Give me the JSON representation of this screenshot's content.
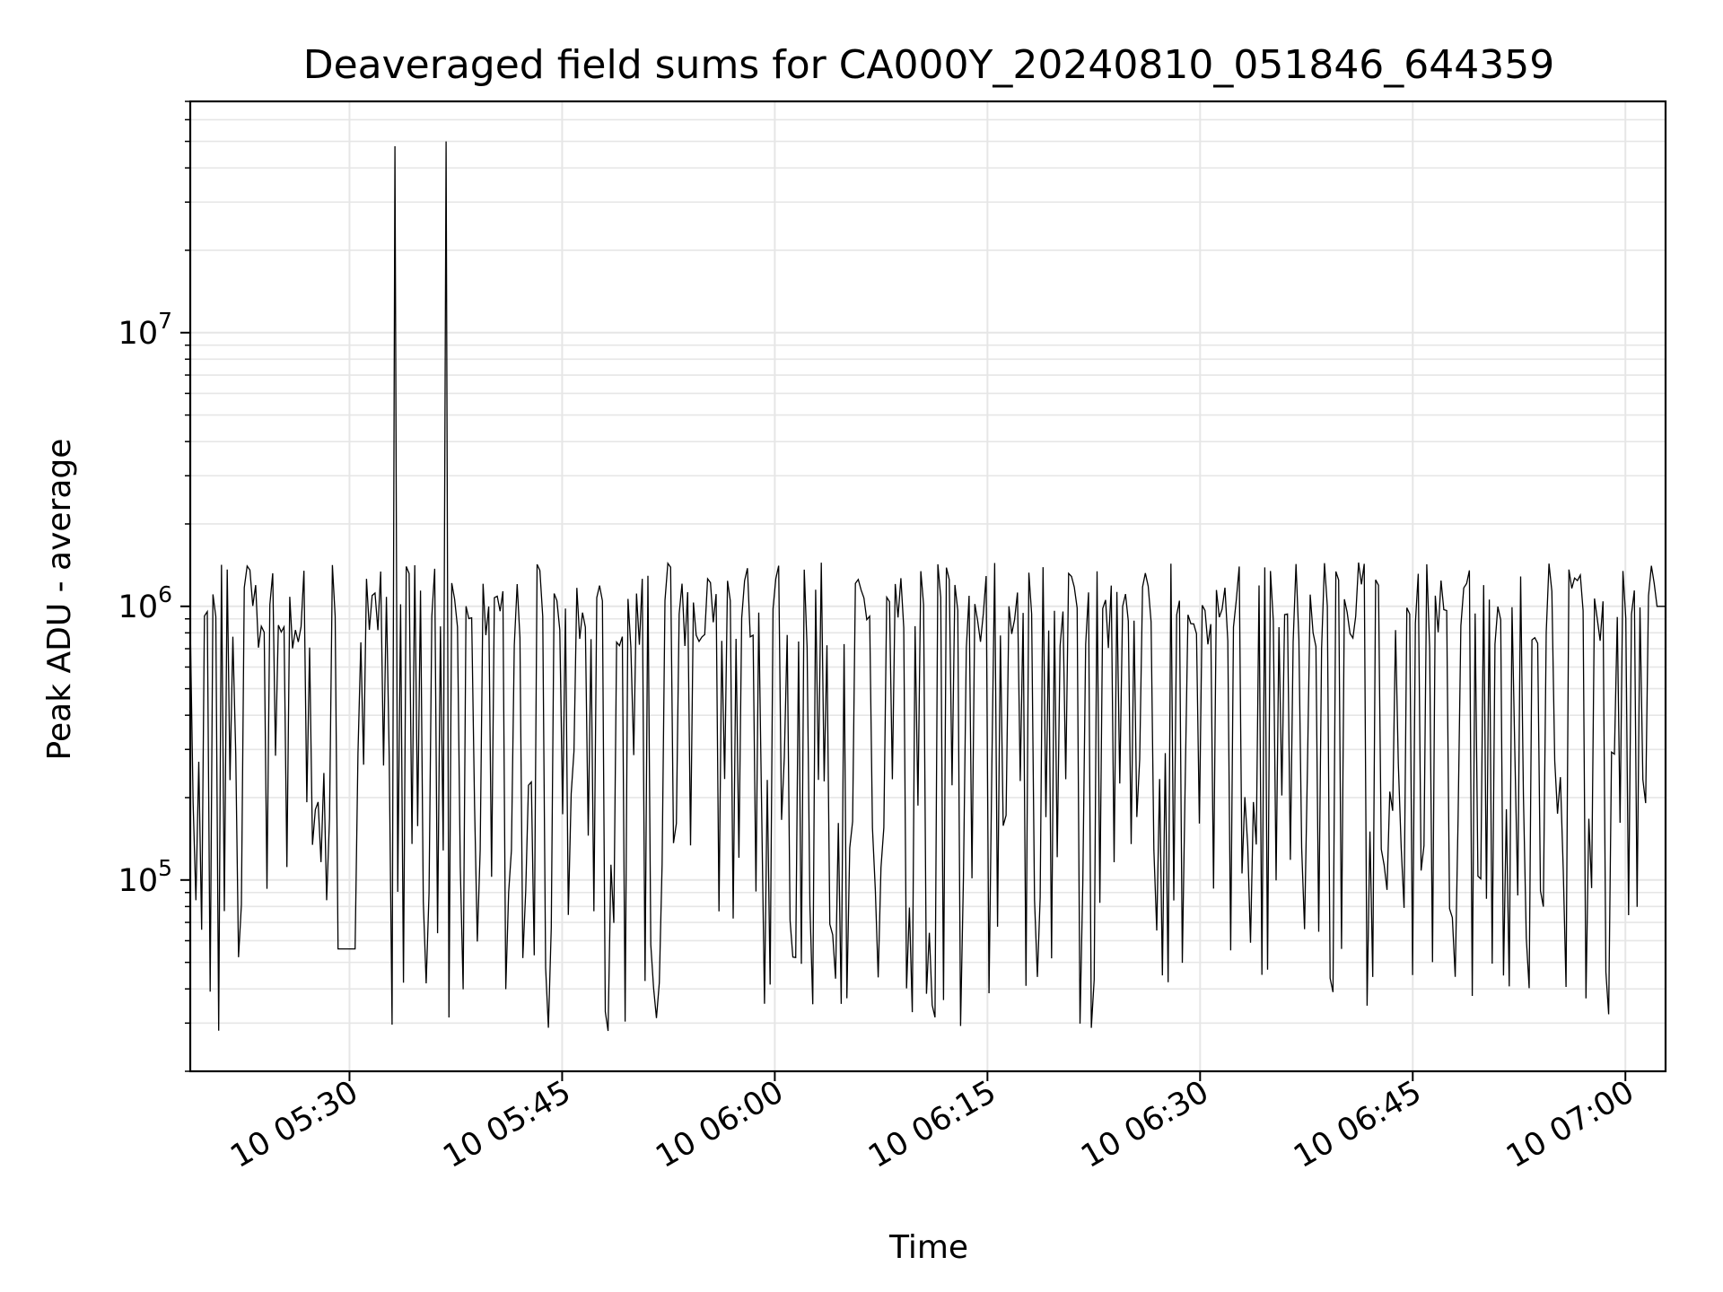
{
  "chart_data": {
    "type": "line",
    "title": "Deaveraged field sums for CA000Y_20240810_051846_644359",
    "xlabel": "Time",
    "ylabel": "Peak ADU - average",
    "y_scale": "log",
    "ylim": [
      20000,
      70000000
    ],
    "xlim": [
      "2024-08-10 05:18:46",
      "2024-08-10 07:02:50"
    ],
    "grid": true,
    "line_color": "#000000",
    "x_ticks": [
      {
        "t": "2024-08-10 05:30",
        "label": "10 05:30"
      },
      {
        "t": "2024-08-10 05:45",
        "label": "10 05:45"
      },
      {
        "t": "2024-08-10 06:00",
        "label": "10 06:00"
      },
      {
        "t": "2024-08-10 06:15",
        "label": "10 06:15"
      },
      {
        "t": "2024-08-10 06:30",
        "label": "10 06:30"
      },
      {
        "t": "2024-08-10 06:45",
        "label": "10 06:45"
      },
      {
        "t": "2024-08-10 07:00",
        "label": "10 07:00"
      }
    ],
    "y_ticks": [
      {
        "value": 100000,
        "base": "10",
        "exp": "5"
      },
      {
        "value": 1000000,
        "base": "10",
        "exp": "6"
      },
      {
        "value": 10000000,
        "base": "10",
        "exp": "7"
      }
    ],
    "series": [
      {
        "name": "",
        "samples": 520,
        "x_start": "2024-08-10 05:18:46",
        "x_end": "2024-08-10 07:02:50",
        "baseline_range": [
          700000,
          1450000
        ],
        "dip_range": [
          28000,
          300000
        ],
        "spikes": [
          {
            "t": "2024-08-10 05:33:15",
            "value": 48000000
          },
          {
            "t": "2024-08-10 05:36:50",
            "value": 50000000
          }
        ],
        "flat_segments": [
          {
            "start": "2024-08-10 05:29:00",
            "end": "2024-08-10 05:30:30",
            "value": 56000
          },
          {
            "start": "2024-08-10 07:02:10",
            "end": "2024-08-10 07:02:50",
            "value": 1000000
          }
        ]
      }
    ]
  }
}
